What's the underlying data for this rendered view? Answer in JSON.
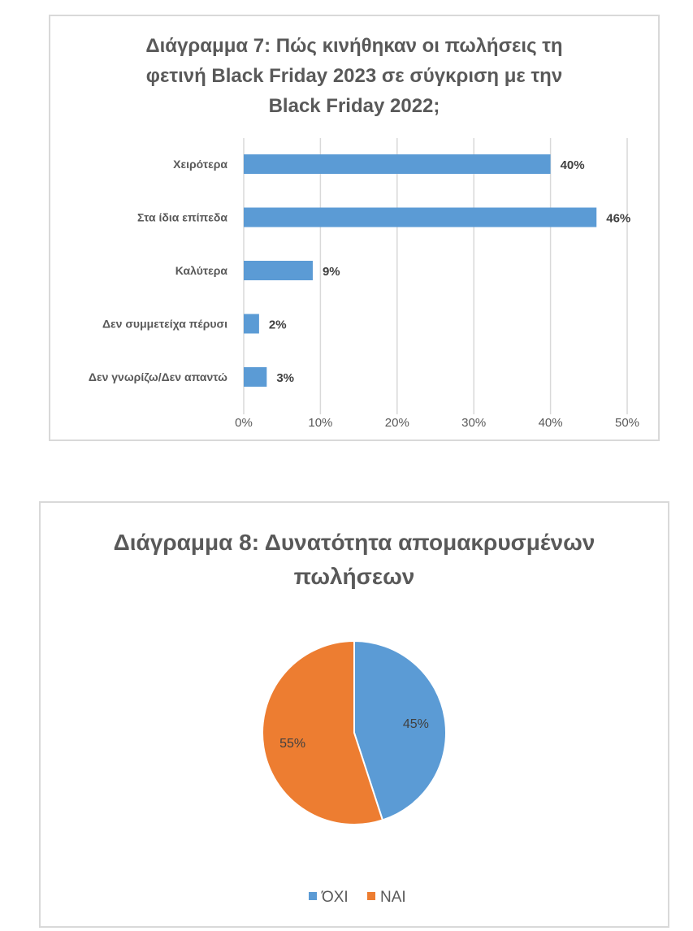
{
  "chart_data": [
    {
      "type": "bar",
      "orientation": "horizontal",
      "title": "Διάγραμμα 7: Πώς κινήθηκαν οι πωλήσεις τη φετινή Black Friday 2023 σε σύγκριση με την Black Friday 2022;",
      "categories": [
        "Χειρότερα",
        "Στα ίδια επίπεδα",
        "Καλύτερα",
        "Δεν συμμετείχα πέρυσι",
        "Δεν γνωρίζω/Δεν απαντώ"
      ],
      "values": [
        40,
        46,
        9,
        2,
        3
      ],
      "value_labels": [
        "40%",
        "46%",
        "9%",
        "2%",
        "3%"
      ],
      "xlim": [
        0,
        50
      ],
      "xticks": [
        "0%",
        "10%",
        "20%",
        "30%",
        "40%",
        "50%"
      ],
      "grid": true,
      "color": "#5b9bd5"
    },
    {
      "type": "pie",
      "title": "Διάγραμμα 8: Δυνατότητα απομακρυσμένων πωλήσεων",
      "labels": [
        "ΌΧΙ",
        "ΝΑΙ"
      ],
      "values": [
        45,
        55
      ],
      "value_labels": [
        "45%",
        "55%"
      ],
      "colors": [
        "#5b9bd5",
        "#ed7d31"
      ],
      "legend": "bottom"
    }
  ]
}
